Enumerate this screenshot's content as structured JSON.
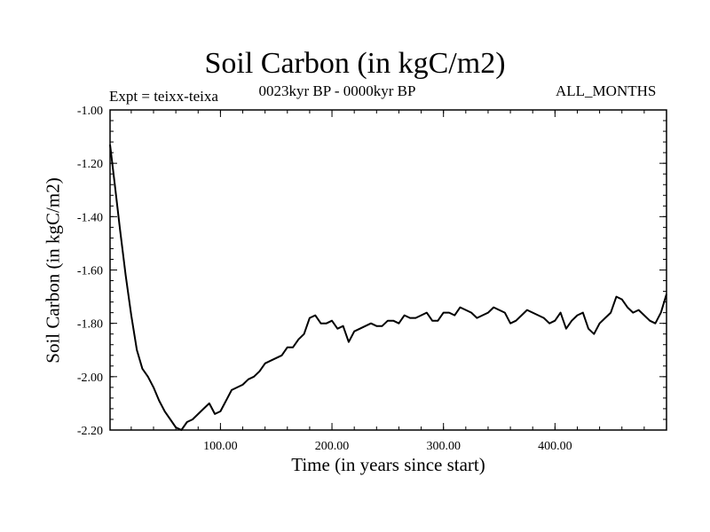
{
  "chart_data": {
    "type": "line",
    "title": "Soil Carbon (in kgC/m2)",
    "subtitle": "0023kyr BP - 0000kyr BP",
    "experiment_label": "Expt = teixx-teixa",
    "period_label": "ALL_MONTHS",
    "xlabel": "Time (in years since start)",
    "ylabel": "Soil Carbon (in kgC/m2)",
    "xlim": [
      1,
      500
    ],
    "ylim": [
      -2.2,
      -1.0
    ],
    "x_ticks": [
      100,
      200,
      300,
      400
    ],
    "x_tick_labels": [
      "100.00",
      "200.00",
      "300.00",
      "400.00"
    ],
    "y_ticks": [
      -1.0,
      -1.2,
      -1.4,
      -1.6,
      -1.8,
      -2.0,
      -2.2
    ],
    "y_tick_labels": [
      "-1.00",
      "-1.20",
      "-1.40",
      "-1.60",
      "-1.80",
      "-2.00",
      "-2.20"
    ],
    "series": [
      {
        "name": "Soil Carbon",
        "x": [
          1,
          5,
          10,
          15,
          20,
          25,
          30,
          35,
          40,
          45,
          50,
          55,
          60,
          65,
          70,
          75,
          80,
          85,
          90,
          95,
          100,
          105,
          110,
          115,
          120,
          125,
          130,
          135,
          140,
          145,
          150,
          155,
          160,
          165,
          170,
          175,
          180,
          185,
          190,
          195,
          200,
          205,
          210,
          215,
          220,
          225,
          230,
          235,
          240,
          245,
          250,
          255,
          260,
          265,
          270,
          275,
          280,
          285,
          290,
          295,
          300,
          305,
          310,
          315,
          320,
          325,
          330,
          335,
          340,
          345,
          350,
          355,
          360,
          365,
          370,
          375,
          380,
          385,
          390,
          395,
          400,
          405,
          410,
          415,
          420,
          425,
          430,
          435,
          440,
          445,
          450,
          455,
          460,
          465,
          470,
          475,
          480,
          485,
          490,
          495,
          500
        ],
        "values": [
          -1.13,
          -1.27,
          -1.45,
          -1.62,
          -1.77,
          -1.9,
          -1.97,
          -2.0,
          -2.04,
          -2.09,
          -2.13,
          -2.16,
          -2.19,
          -2.2,
          -2.17,
          -2.16,
          -2.14,
          -2.12,
          -2.1,
          -2.14,
          -2.13,
          -2.09,
          -2.05,
          -2.04,
          -2.03,
          -2.01,
          -2.0,
          -1.98,
          -1.95,
          -1.94,
          -1.93,
          -1.92,
          -1.89,
          -1.89,
          -1.86,
          -1.84,
          -1.78,
          -1.77,
          -1.8,
          -1.8,
          -1.79,
          -1.82,
          -1.81,
          -1.87,
          -1.83,
          -1.82,
          -1.81,
          -1.8,
          -1.81,
          -1.81,
          -1.79,
          -1.79,
          -1.8,
          -1.77,
          -1.78,
          -1.78,
          -1.77,
          -1.76,
          -1.79,
          -1.79,
          -1.76,
          -1.76,
          -1.77,
          -1.74,
          -1.75,
          -1.76,
          -1.78,
          -1.77,
          -1.76,
          -1.74,
          -1.75,
          -1.76,
          -1.8,
          -1.79,
          -1.77,
          -1.75,
          -1.76,
          -1.77,
          -1.78,
          -1.8,
          -1.79,
          -1.76,
          -1.82,
          -1.79,
          -1.77,
          -1.76,
          -1.82,
          -1.84,
          -1.8,
          -1.78,
          -1.76,
          -1.7,
          -1.71,
          -1.74,
          -1.76,
          -1.75,
          -1.77,
          -1.79,
          -1.8,
          -1.76,
          -1.69
        ]
      }
    ]
  }
}
